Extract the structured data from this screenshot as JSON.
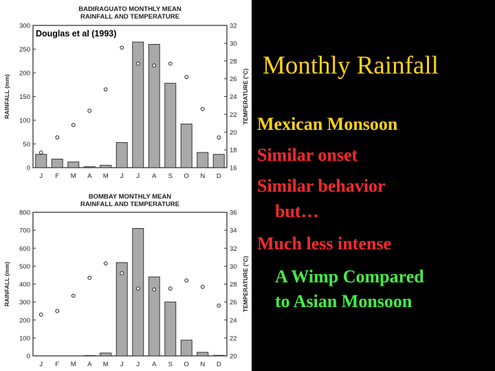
{
  "slide": {
    "title": "Monthly Rainfall",
    "bullets": [
      {
        "text": "Mexican Monsoon",
        "color": "#ffd21a"
      },
      {
        "text": "Similar onset",
        "color": "#ff2a2a"
      },
      {
        "text": "Similar behavior",
        "color": "#ff2a2a"
      },
      {
        "text": "but…",
        "color": "#ff2a2a"
      },
      {
        "text": "Much less intense",
        "color": "#ff2a2a"
      },
      {
        "text": "A Wimp Compared",
        "color": "#44ee44"
      },
      {
        "text": "to Asian Monsoon",
        "color": "#44ee44"
      }
    ]
  },
  "chart_data": [
    {
      "type": "bar",
      "title": "BADIRAGUATO MONTHLY MEAN",
      "subtitle": "RAINFALL AND TEMPERATURE",
      "annotation": "Douglas et al (1993)",
      "categories": [
        "J",
        "F",
        "M",
        "A",
        "M",
        "J",
        "J",
        "A",
        "S",
        "O",
        "N",
        "D"
      ],
      "ylabel": "RAINFALL (mm)",
      "y2label": "TEMPERATURE (°C)",
      "ylim": [
        0,
        300
      ],
      "yticks": [
        0,
        50,
        100,
        150,
        200,
        250,
        300
      ],
      "y2lim": [
        16,
        32
      ],
      "y2ticks": [
        16,
        18,
        20,
        22,
        24,
        26,
        28,
        30,
        32
      ],
      "series": [
        {
          "kind": "bar",
          "values": [
            28,
            18,
            12,
            2,
            5,
            53,
            265,
            260,
            178,
            92,
            32,
            28
          ]
        },
        {
          "kind": "point",
          "values": [
            17.7,
            19.4,
            20.8,
            22.4,
            24.8,
            29.5,
            27.7,
            27.5,
            27.7,
            26.2,
            22.6,
            19.4
          ]
        }
      ]
    },
    {
      "type": "bar",
      "title": "BOMBAY MONTHLY MEAN",
      "subtitle": "RAINFALL AND TEMPERATURE",
      "categories": [
        "J",
        "F",
        "M",
        "A",
        "M",
        "J",
        "J",
        "A",
        "S",
        "O",
        "N",
        "D"
      ],
      "ylabel": "RAINFALL (mm)",
      "y2label": "TEMPERATURE (°C)",
      "ylim": [
        0,
        800
      ],
      "yticks": [
        0,
        100,
        200,
        300,
        400,
        500,
        600,
        700,
        800
      ],
      "y2lim": [
        20,
        36
      ],
      "y2ticks": [
        20,
        22,
        24,
        26,
        28,
        30,
        32,
        34,
        36
      ],
      "series": [
        {
          "kind": "bar",
          "values": [
            0,
            0,
            0,
            2,
            16,
            520,
            710,
            440,
            300,
            88,
            20,
            3
          ]
        },
        {
          "kind": "point",
          "values": [
            24.6,
            25.0,
            26.7,
            28.7,
            30.3,
            29.2,
            27.5,
            27.4,
            27.5,
            28.4,
            27.7,
            25.6
          ]
        }
      ]
    }
  ]
}
